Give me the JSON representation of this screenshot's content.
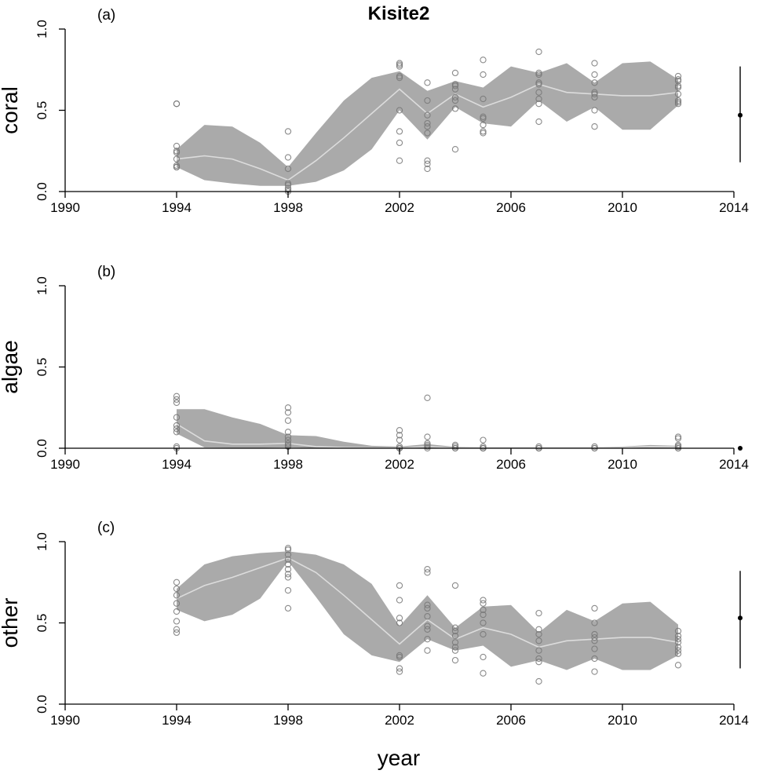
{
  "chart_data": {
    "type": "line",
    "title": "Kisite2",
    "xlabel": "year",
    "xlim": [
      1990,
      2014
    ],
    "xticks": [
      1990,
      1994,
      1998,
      2002,
      2006,
      2010,
      2014
    ],
    "yticks": [
      0.0,
      0.5,
      1.0
    ],
    "ytick_labels": [
      "0.0",
      "0.5",
      "1.0"
    ],
    "colors": {
      "band": "#aaaaaa",
      "median": "#dcdcdc",
      "points": "#777777",
      "axis": "#000000"
    },
    "panels": [
      {
        "label": "(a)",
        "ylabel": "coral",
        "ylim": [
          0,
          1
        ],
        "years": [
          1994,
          1995,
          1996,
          1997,
          1998,
          1999,
          2000,
          2001,
          2002,
          2003,
          2004,
          2005,
          2006,
          2007,
          2008,
          2009,
          2010,
          2011,
          2012
        ],
        "upper": [
          0.26,
          0.41,
          0.4,
          0.3,
          0.15,
          0.36,
          0.56,
          0.7,
          0.74,
          0.62,
          0.68,
          0.64,
          0.77,
          0.73,
          0.79,
          0.67,
          0.79,
          0.8,
          0.69
        ],
        "median": [
          0.2,
          0.22,
          0.2,
          0.14,
          0.07,
          0.19,
          0.33,
          0.48,
          0.63,
          0.48,
          0.6,
          0.52,
          0.58,
          0.66,
          0.61,
          0.6,
          0.59,
          0.59,
          0.61
        ],
        "lower": [
          0.15,
          0.07,
          0.05,
          0.035,
          0.035,
          0.06,
          0.13,
          0.26,
          0.5,
          0.32,
          0.52,
          0.42,
          0.4,
          0.56,
          0.43,
          0.52,
          0.38,
          0.38,
          0.53
        ],
        "points": [
          {
            "year": 1994,
            "values": [
              0.54,
              0.54,
              0.28,
              0.25,
              0.24,
              0.2,
              0.16,
              0.15,
              0.15
            ]
          },
          {
            "year": 1998,
            "values": [
              0.37,
              0.21,
              0.14,
              0.05,
              0.04,
              0.02,
              0.01,
              0.0
            ]
          },
          {
            "year": 2002,
            "values": [
              0.79,
              0.78,
              0.77,
              0.71,
              0.7,
              0.5,
              0.37,
              0.3,
              0.19
            ]
          },
          {
            "year": 2003,
            "values": [
              0.67,
              0.56,
              0.47,
              0.42,
              0.4,
              0.36,
              0.19,
              0.17,
              0.14
            ]
          },
          {
            "year": 2004,
            "values": [
              0.73,
              0.66,
              0.65,
              0.63,
              0.58,
              0.56,
              0.51,
              0.26
            ]
          },
          {
            "year": 2005,
            "values": [
              0.81,
              0.72,
              0.57,
              0.46,
              0.45,
              0.41,
              0.37,
              0.36
            ]
          },
          {
            "year": 2007,
            "values": [
              0.86,
              0.73,
              0.72,
              0.67,
              0.66,
              0.61,
              0.57,
              0.54,
              0.43
            ]
          },
          {
            "year": 2009,
            "values": [
              0.79,
              0.72,
              0.67,
              0.61,
              0.6,
              0.58,
              0.5,
              0.4
            ]
          },
          {
            "year": 2012,
            "values": [
              0.71,
              0.69,
              0.68,
              0.65,
              0.64,
              0.6,
              0.56,
              0.55,
              0.54
            ]
          }
        ],
        "summary": {
          "mean": 0.47,
          "low": 0.18,
          "high": 0.77
        }
      },
      {
        "label": "(b)",
        "ylabel": "algae",
        "ylim": [
          0,
          1
        ],
        "years": [
          1994,
          1995,
          1996,
          1997,
          1998,
          1999,
          2000,
          2001,
          2002,
          2003,
          2004,
          2005,
          2006,
          2007,
          2008,
          2009,
          2010,
          2011,
          2012
        ],
        "upper": [
          0.24,
          0.24,
          0.19,
          0.15,
          0.08,
          0.075,
          0.04,
          0.015,
          0.01,
          0.025,
          0.008,
          0.006,
          0.006,
          0.006,
          0.006,
          0.006,
          0.01,
          0.02,
          0.015
        ],
        "median": [
          0.15,
          0.045,
          0.025,
          0.025,
          0.03,
          0.01,
          0.005,
          0.003,
          0.002,
          0.01,
          0.002,
          0.002,
          0.002,
          0.002,
          0.002,
          0.002,
          0.005,
          0.01,
          0.008
        ],
        "lower": [
          0.09,
          0.005,
          0.003,
          0.003,
          0.005,
          0.002,
          0.0,
          0.0,
          0.0,
          0.0,
          0.0,
          0.0,
          0.0,
          0.0,
          0.0,
          0.0,
          0.0,
          0.003,
          0.003
        ],
        "points": [
          {
            "year": 1994,
            "values": [
              0.32,
              0.3,
              0.28,
              0.19,
              0.14,
              0.12,
              0.1,
              0.01,
              0.0
            ]
          },
          {
            "year": 1998,
            "values": [
              0.25,
              0.22,
              0.17,
              0.1,
              0.07,
              0.05,
              0.03,
              0.02,
              0.01
            ]
          },
          {
            "year": 2002,
            "values": [
              0.11,
              0.08,
              0.05,
              0.01,
              0.0,
              0.0
            ]
          },
          {
            "year": 2003,
            "values": [
              0.31,
              0.07,
              0.03,
              0.02,
              0.01,
              0.0
            ]
          },
          {
            "year": 2004,
            "values": [
              0.02,
              0.01,
              0.0,
              0.0
            ]
          },
          {
            "year": 2005,
            "values": [
              0.05,
              0.01,
              0.0,
              0.0,
              0.0
            ]
          },
          {
            "year": 2007,
            "values": [
              0.01,
              0.0,
              0.0,
              0.0
            ]
          },
          {
            "year": 2009,
            "values": [
              0.01,
              0.0,
              0.0
            ]
          },
          {
            "year": 2012,
            "values": [
              0.07,
              0.06,
              0.02,
              0.01,
              0.01,
              0.0,
              0.0
            ]
          }
        ],
        "summary": {
          "mean": 0.0,
          "low": 0.0,
          "high": 0.0
        }
      },
      {
        "label": "(c)",
        "ylabel": "other",
        "ylim": [
          0,
          1
        ],
        "years": [
          1994,
          1995,
          1996,
          1997,
          1998,
          1999,
          2000,
          2001,
          2002,
          2003,
          2004,
          2005,
          2006,
          2007,
          2008,
          2009,
          2010,
          2011,
          2012
        ],
        "upper": [
          0.71,
          0.86,
          0.91,
          0.93,
          0.94,
          0.92,
          0.86,
          0.74,
          0.48,
          0.67,
          0.47,
          0.6,
          0.61,
          0.44,
          0.58,
          0.51,
          0.62,
          0.63,
          0.49
        ],
        "median": [
          0.65,
          0.73,
          0.78,
          0.84,
          0.9,
          0.81,
          0.67,
          0.52,
          0.37,
          0.52,
          0.4,
          0.47,
          0.43,
          0.35,
          0.39,
          0.4,
          0.41,
          0.41,
          0.38
        ],
        "lower": [
          0.58,
          0.51,
          0.55,
          0.65,
          0.88,
          0.66,
          0.43,
          0.3,
          0.26,
          0.4,
          0.33,
          0.36,
          0.23,
          0.27,
          0.21,
          0.28,
          0.21,
          0.21,
          0.3
        ],
        "points": [
          {
            "year": 1994,
            "values": [
              0.75,
              0.71,
              0.67,
              0.62,
              0.57,
              0.51,
              0.46,
              0.44
            ]
          },
          {
            "year": 1998,
            "values": [
              0.96,
              0.95,
              0.92,
              0.89,
              0.86,
              0.83,
              0.8,
              0.78,
              0.7,
              0.59
            ]
          },
          {
            "year": 2002,
            "values": [
              0.73,
              0.64,
              0.53,
              0.5,
              0.3,
              0.29,
              0.22,
              0.2
            ]
          },
          {
            "year": 2003,
            "values": [
              0.83,
              0.81,
              0.61,
              0.59,
              0.54,
              0.48,
              0.46,
              0.4,
              0.33
            ]
          },
          {
            "year": 2004,
            "values": [
              0.73,
              0.47,
              0.45,
              0.42,
              0.38,
              0.35,
              0.33,
              0.27
            ]
          },
          {
            "year": 2005,
            "values": [
              0.64,
              0.62,
              0.58,
              0.55,
              0.5,
              0.43,
              0.29,
              0.19
            ]
          },
          {
            "year": 2007,
            "values": [
              0.56,
              0.46,
              0.43,
              0.39,
              0.33,
              0.28,
              0.26,
              0.14
            ]
          },
          {
            "year": 2009,
            "values": [
              0.59,
              0.5,
              0.43,
              0.41,
              0.39,
              0.34,
              0.28,
              0.2
            ]
          },
          {
            "year": 2012,
            "values": [
              0.45,
              0.42,
              0.4,
              0.38,
              0.35,
              0.33,
              0.31,
              0.24
            ]
          }
        ],
        "summary": {
          "mean": 0.53,
          "low": 0.22,
          "high": 0.82
        }
      }
    ]
  }
}
